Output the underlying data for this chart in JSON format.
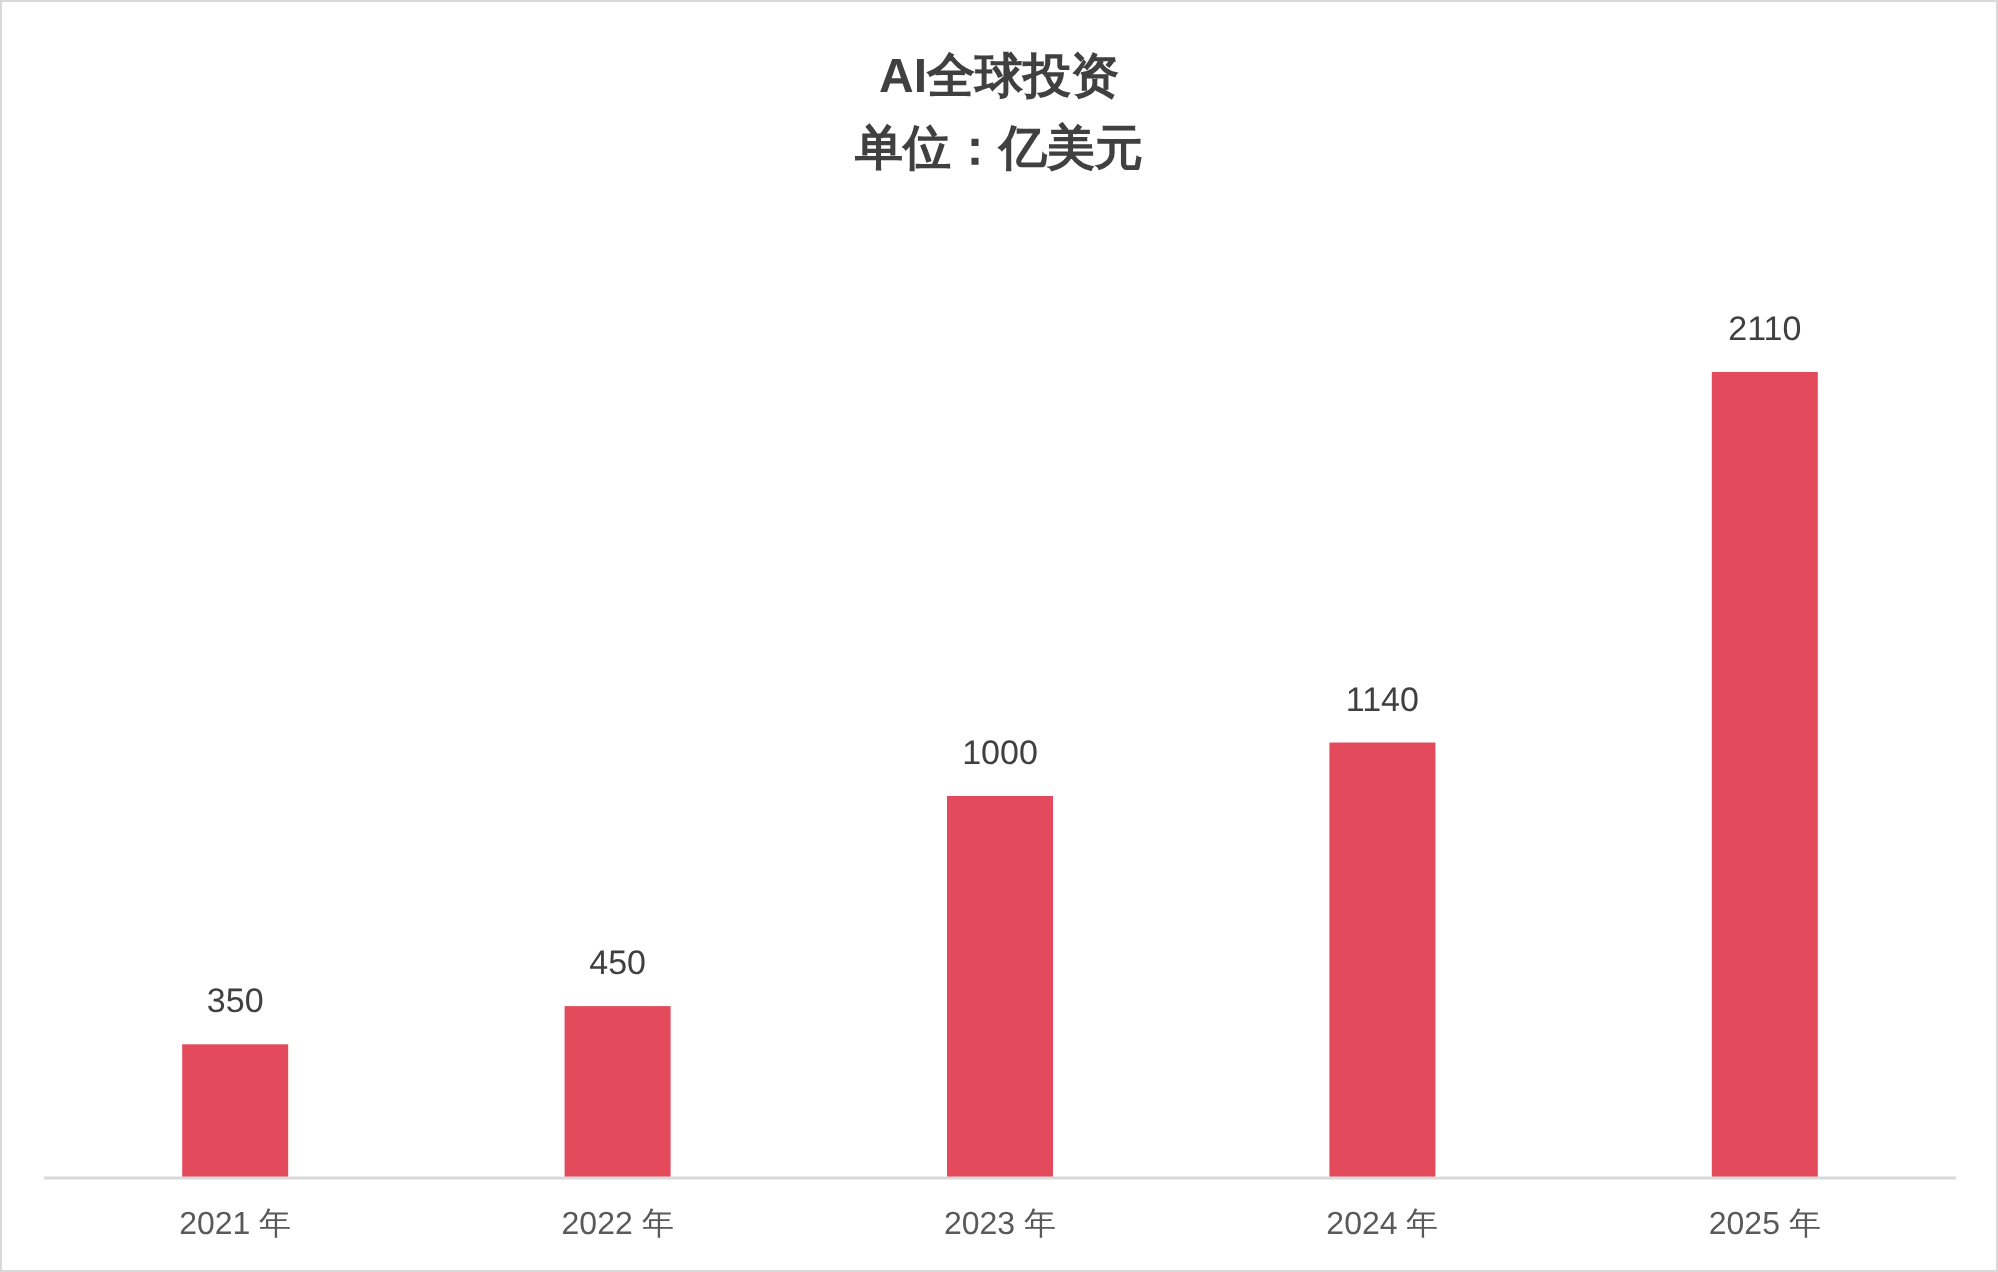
{
  "chart_data": {
    "type": "bar",
    "title": "AI全球投资",
    "subtitle": "单位：亿美元",
    "categories": [
      "2021 年",
      "2022 年",
      "2023 年",
      "2024 年",
      "2025 年"
    ],
    "values": [
      350,
      450,
      1000,
      1140,
      2110
    ],
    "color": "#e34a5b",
    "data_labels": true
  }
}
